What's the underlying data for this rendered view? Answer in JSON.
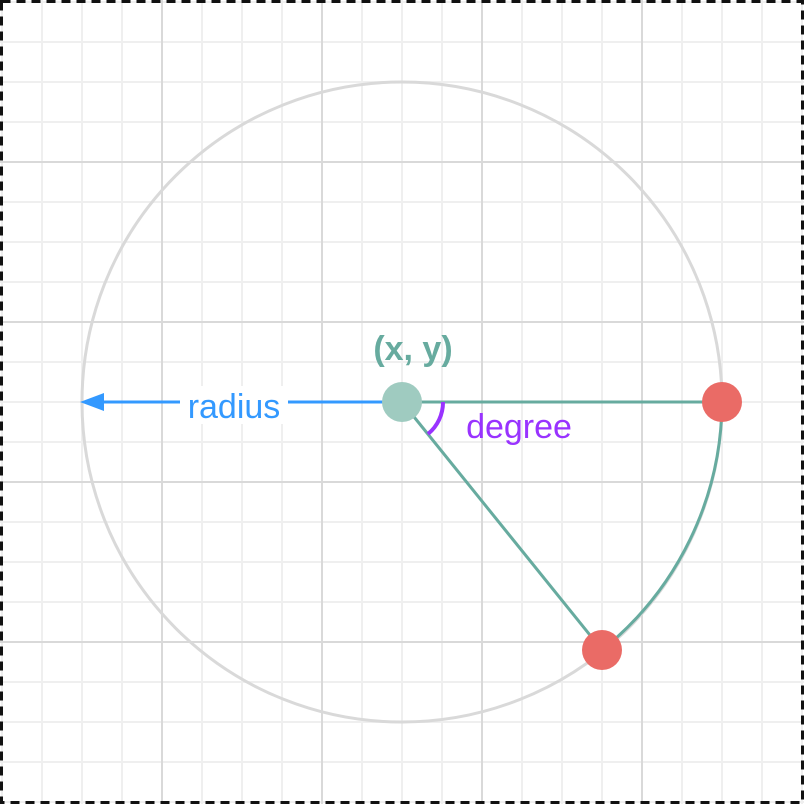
{
  "labels": {
    "center": "(x, y)",
    "radius": "radius",
    "angle": "degree"
  },
  "colors": {
    "background": "#ffffff",
    "grid_minor": "#efefef",
    "grid_major": "#d9d9d9",
    "circle": "#d9d9d9",
    "frame": "#111111",
    "center_point": "#9fcbc0",
    "center_label": "#67ab9f",
    "sector": "#67ab9f",
    "end_points": "#ea6b66",
    "radius_arrow": "#3399ff",
    "angle_arc": "#9933ff"
  },
  "icons": {
    "radius_head": "arrowhead-left"
  }
}
